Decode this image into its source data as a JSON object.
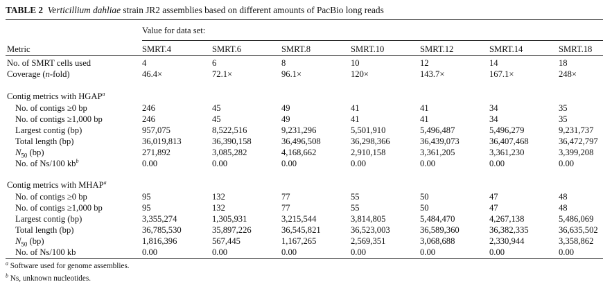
{
  "caption": {
    "label": "TABLE 2",
    "species": "Verticillium dahliae",
    "rest": " strain JR2 assemblies based on different amounts of PacBio long reads"
  },
  "header": {
    "group_label": "Value for data set:",
    "metric_label": "Metric",
    "columns": [
      "SMRT.4",
      "SMRT.6",
      "SMRT.8",
      "SMRT.10",
      "SMRT.12",
      "SMRT.14",
      "SMRT.18"
    ]
  },
  "top_rows": [
    {
      "label": "No. of SMRT cells used",
      "values": [
        "4",
        "6",
        "8",
        "10",
        "12",
        "14",
        "18"
      ]
    },
    {
      "label_pre": "Coverage (",
      "label_ital": "n",
      "label_post": "-fold)",
      "values": [
        "46.4×",
        "72.1×",
        "96.1×",
        "120×",
        "143.7×",
        "167.1×",
        "248×"
      ]
    }
  ],
  "hgap": {
    "title": "Contig metrics with HGAP",
    "title_sup": "a",
    "rows": [
      {
        "label": "No. of contigs ≥0 bp",
        "values": [
          "246",
          "45",
          "49",
          "41",
          "41",
          "34",
          "35"
        ]
      },
      {
        "label": "No. of contigs ≥1,000 bp",
        "values": [
          "246",
          "45",
          "49",
          "41",
          "41",
          "34",
          "35"
        ]
      },
      {
        "label": "Largest contig (bp)",
        "values": [
          "957,075",
          "8,522,516",
          "9,231,296",
          "5,501,910",
          "5,496,487",
          "5,496,279",
          "9,231,737"
        ]
      },
      {
        "label": "Total length (bp)",
        "values": [
          "36,019,813",
          "36,390,158",
          "36,496,508",
          "36,298,366",
          "36,439,073",
          "36,407,468",
          "36,472,797"
        ]
      },
      {
        "label_n50": true,
        "label_n": "N",
        "label_sub": "50",
        "label_post": " (bp)",
        "values": [
          "271,892",
          "3,085,282",
          "4,168,662",
          "2,910,158",
          "3,361,205",
          "3,361,230",
          "3,399,208"
        ]
      },
      {
        "label": "No. of Ns/100 kb",
        "label_sup": "b",
        "values": [
          "0.00",
          "0.00",
          "0.00",
          "0.00",
          "0.00",
          "0.00",
          "0.00"
        ]
      }
    ]
  },
  "mhap": {
    "title": "Contig metrics with MHAP",
    "title_sup": "a",
    "rows": [
      {
        "label": "No. of contigs ≥0 bp",
        "values": [
          "95",
          "132",
          "77",
          "55",
          "50",
          "47",
          "48"
        ]
      },
      {
        "label": "No. of contigs ≥1,000 bp",
        "values": [
          "95",
          "132",
          "77",
          "55",
          "50",
          "47",
          "48"
        ]
      },
      {
        "label": "Largest contig (bp)",
        "values": [
          "3,355,274",
          "1,305,931",
          "3,215,544",
          "3,814,805",
          "5,484,470",
          "4,267,138",
          "5,486,069"
        ]
      },
      {
        "label": "Total length (bp)",
        "values": [
          "36,785,530",
          "35,897,226",
          "36,545,821",
          "36,523,003",
          "36,589,360",
          "36,382,335",
          "36,635,502"
        ]
      },
      {
        "label_n50": true,
        "label_n": "N",
        "label_sub": "50",
        "label_post": " (bp)",
        "values": [
          "1,816,396",
          "567,445",
          "1,167,265",
          "2,569,351",
          "3,068,688",
          "2,330,944",
          "3,358,862"
        ]
      },
      {
        "label": "No. of Ns/100 kb",
        "values": [
          "0.00",
          "0.00",
          "0.00",
          "0.00",
          "0.00",
          "0.00",
          "0.00"
        ]
      }
    ]
  },
  "footnotes": [
    {
      "mark": "a",
      "text": " Software used for genome assemblies."
    },
    {
      "mark": "b",
      "text": " Ns, unknown nucleotides."
    }
  ]
}
